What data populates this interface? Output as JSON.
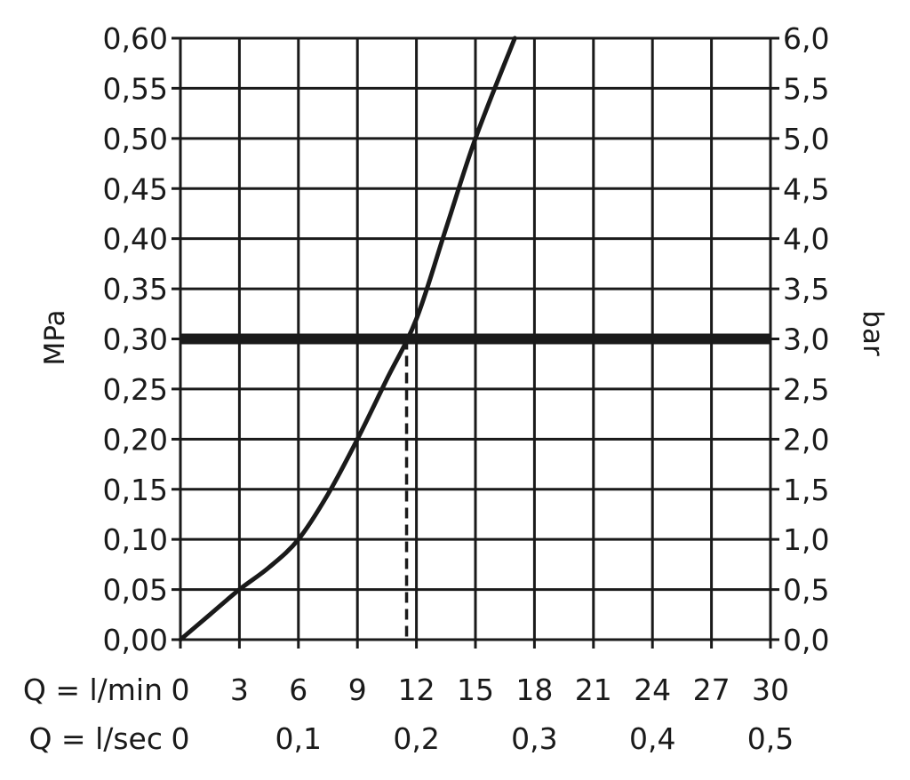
{
  "chart_data": {
    "type": "line",
    "title": "",
    "ylabel_left": "MPa",
    "ylabel_right": "bar",
    "x_row1_label": "Q = l/min",
    "x_row2_label": "Q = l/sec",
    "xlim": [
      0,
      30
    ],
    "ylim": [
      0,
      0.6
    ],
    "grid": true,
    "x_ticks_lmin": [
      "0",
      "3",
      "6",
      "9",
      "12",
      "15",
      "18",
      "21",
      "24",
      "27",
      "30"
    ],
    "x_ticks_lsec": [
      {
        "value": 0,
        "label": "0"
      },
      {
        "value": 6,
        "label": "0,1"
      },
      {
        "value": 12,
        "label": "0,2"
      },
      {
        "value": 18,
        "label": "0,3"
      },
      {
        "value": 24,
        "label": "0,4"
      },
      {
        "value": 30,
        "label": "0,5"
      }
    ],
    "y_ticks_mpa": [
      "0,00",
      "0,05",
      "0,10",
      "0,15",
      "0,20",
      "0,25",
      "0,30",
      "0,35",
      "0,40",
      "0,45",
      "0,50",
      "0,55",
      "0,60"
    ],
    "y_ticks_bar": [
      "0,0",
      "0,5",
      "1,0",
      "1,5",
      "2,0",
      "2,5",
      "3,0",
      "3,5",
      "4,0",
      "4,5",
      "5,0",
      "5,5",
      "6,0"
    ],
    "series": [
      {
        "x": [
          0,
          1.5,
          3,
          4.5,
          6,
          7.5,
          9,
          10.5,
          12,
          13.5,
          15,
          17
        ],
        "y": [
          0,
          0.025,
          0.05,
          0.072,
          0.1,
          0.145,
          0.2,
          0.26,
          0.32,
          0.41,
          0.5,
          0.6
        ]
      }
    ],
    "reference_pressure_mpa": 0.3,
    "reference_flow_lmin": 11.5
  }
}
